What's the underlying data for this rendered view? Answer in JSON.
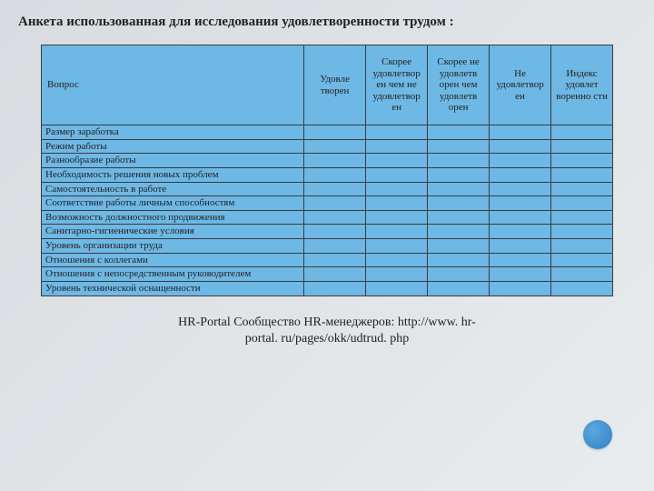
{
  "title": "Анкета использованная для исследования удовлетворенности трудом :",
  "headers": {
    "question": "Вопрос",
    "col1": "Удовле творен",
    "col2": "Скорее удовлетвор ен чем не удовлетвор ен",
    "col3": "Скорее не удовлетв орен чем удовлетв орен",
    "col4": "Не удовлетвор ен",
    "col5": "Индекс удовлет воренно сти"
  },
  "rows": [
    "Размер заработка",
    "Режим работы",
    "Разнообразие работы",
    "Необходимость решения новых проблем",
    "Самостоятельность в работе",
    "Соответствие работы личным способностям",
    "Возможность должностного продвижения",
    "Санитарно-гигиенические условия",
    "Уровень организации труда",
    "Отношения с коллегами",
    "Отношения с непосредственным руководителем",
    "Уровень технической оснащенности"
  ],
  "footer_line1": "HR-Portal Сообщество HR-менеджеров: http://www. hr-",
  "footer_line2": "portal. ru/pages/okk/udtrud. php",
  "colors": {
    "table_bg": "#6eb8e5",
    "border": "#3a3a3a",
    "page_bg_start": "#d8dce0",
    "page_bg_end": "#e8ecee",
    "dot": "#2f7fc4"
  }
}
